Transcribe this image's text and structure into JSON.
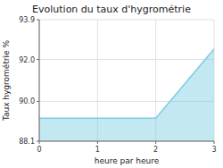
{
  "chart_data": {
    "type": "area",
    "title": "Evolution du taux d'hygrométrie",
    "xlabel": "heure par heure",
    "ylabel": "Taux hygrométrie %",
    "x": [
      0,
      1,
      2,
      3
    ],
    "values": [
      89.2,
      89.2,
      89.2,
      92.5
    ],
    "color": "#7dcde0",
    "xlim": [
      0,
      3
    ],
    "ylim": [
      88.1,
      93.9
    ],
    "xticks": [
      0,
      1,
      2,
      3
    ],
    "yticks": [
      88.1,
      {
        "value": 90.0,
        "label": "90.0"
      },
      {
        "value": 92.0,
        "label": "92.0"
      },
      93.9
    ],
    "grid": true
  }
}
